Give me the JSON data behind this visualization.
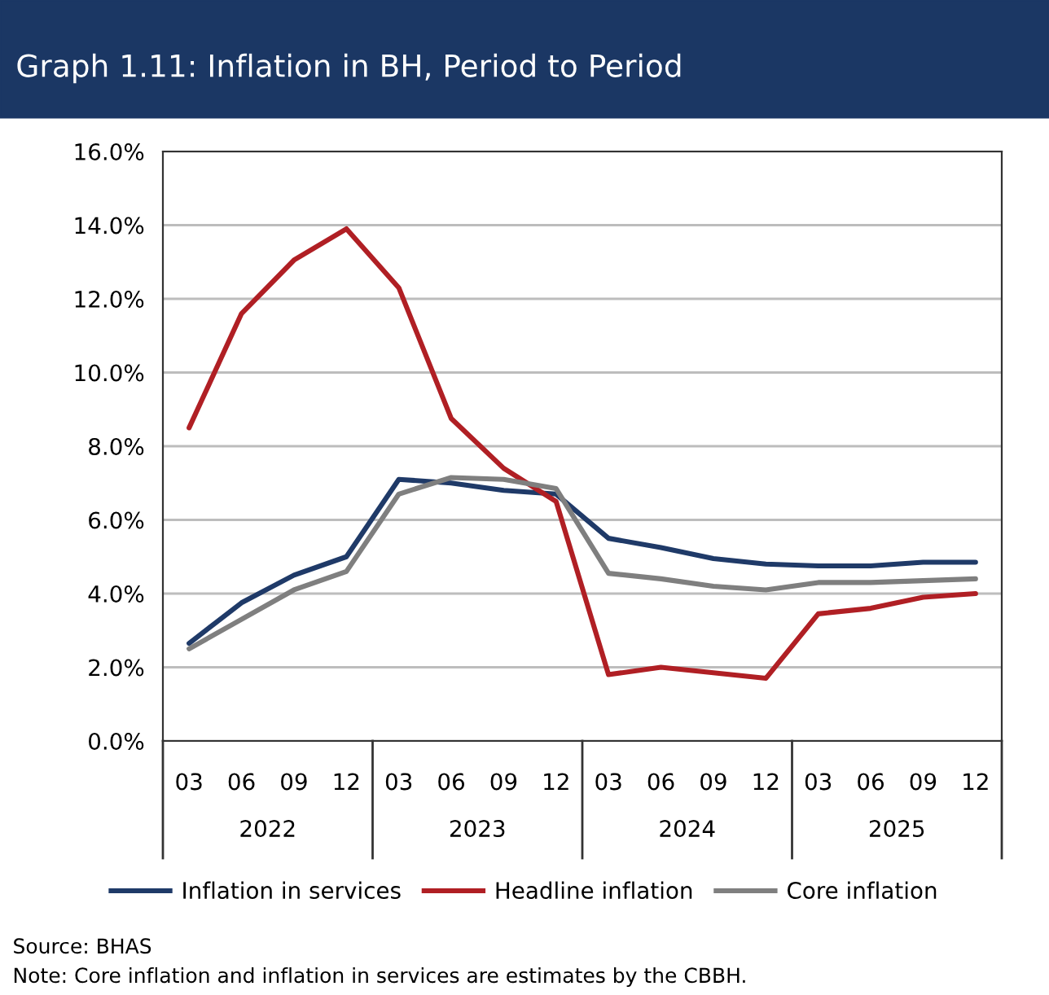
{
  "chart_data": {
    "type": "line",
    "title": "Graph 1.11: Inflation in BH, Period to Period",
    "categories": [
      "03",
      "06",
      "09",
      "12",
      "03",
      "06",
      "09",
      "12",
      "03",
      "06",
      "09",
      "12",
      "03",
      "06",
      "09",
      "12"
    ],
    "series": [
      {
        "name": "Inflation in services",
        "color": "#1f3a68",
        "values": [
          2.65,
          3.75,
          4.5,
          5.0,
          7.1,
          7.0,
          6.8,
          6.7,
          5.5,
          5.25,
          4.95,
          4.8,
          4.75,
          4.75,
          4.85,
          4.85
        ]
      },
      {
        "name": "Headline inflation",
        "color": "#b01f24",
        "values": [
          8.5,
          11.6,
          13.05,
          13.9,
          12.3,
          8.75,
          7.4,
          6.5,
          1.8,
          2.0,
          1.85,
          1.7,
          3.45,
          3.6,
          3.9,
          4.0
        ]
      },
      {
        "name": "Core inflation",
        "color": "#7f7f7f",
        "values": [
          2.5,
          3.3,
          4.1,
          4.6,
          6.7,
          7.15,
          7.1,
          6.85,
          4.55,
          4.4,
          4.2,
          4.1,
          4.3,
          4.3,
          4.35,
          4.4
        ]
      }
    ],
    "ylim": [
      0,
      16
    ],
    "yticks": [
      {
        "value": 0,
        "label": "0.0%"
      },
      {
        "value": 2,
        "label": "2.0%"
      },
      {
        "value": 4,
        "label": "4.0%"
      },
      {
        "value": 6,
        "label": "6.0%"
      },
      {
        "value": 8,
        "label": "8.0%"
      },
      {
        "value": 10,
        "label": "10.0%"
      },
      {
        "value": 12,
        "label": "12.0%"
      },
      {
        "value": 14,
        "label": "14.0%"
      },
      {
        "value": 16,
        "label": "16.0%"
      }
    ],
    "grid": "y",
    "legend": "bottom",
    "line_style": "solid",
    "marker": "none",
    "annotations": [
      "2022",
      "2023",
      "2024",
      "2025",
      "Source: BHAS",
      "Note: Core inflation and inflation in services are estimates by the CBBH."
    ]
  }
}
